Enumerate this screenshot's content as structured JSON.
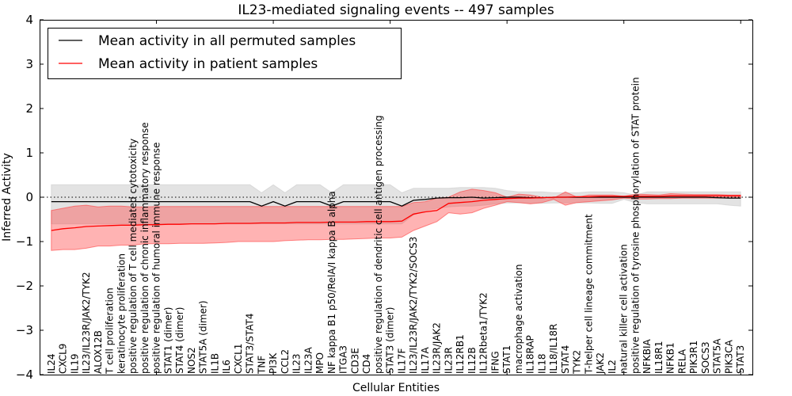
{
  "chart_data": {
    "type": "line",
    "title": "IL23-mediated signaling events -- 497 samples",
    "xlabel": "Cellular Entities",
    "ylabel": "Inferred Activity",
    "ylim": [
      -4,
      4
    ],
    "xlim": [
      0,
      61
    ],
    "yticks": [
      4,
      3,
      2,
      1,
      0,
      -1,
      -2,
      -3,
      -4
    ],
    "ytick_labels": [
      "4",
      "3",
      "2",
      "1",
      "0",
      "−1",
      "−2",
      "−3",
      "−4"
    ],
    "grid": false,
    "reference_line": 0,
    "legend": {
      "placement": "top-left",
      "entries": [
        {
          "label": "Mean activity in all permuted samples",
          "color": "#000000"
        },
        {
          "label": "Mean activity in patient samples",
          "color": "#ff0000"
        }
      ]
    },
    "categories": [
      "IL24",
      "CXCL9",
      "IL19",
      "IL23/IL23R/JAK2/TYK2",
      "ALOX12B",
      "T cell proliferation",
      "keratinocyte proliferation",
      "positive regulation of T cell mediated cytotoxicity",
      "positive regulation of chronic inflammatory response",
      "positive regulation of humoral immune response",
      "STAT1 (dimer)",
      "STAT4 (dimer)",
      "NOS2",
      "STAT5A (dimer)",
      "IL1B",
      "IL6",
      "CXCL1",
      "STAT3/STAT4",
      "TNF",
      "PI3K",
      "CCL2",
      "IL23",
      "IL23A",
      "MPO",
      "NF kappa B1 p50/RelA/I kappa B alpha",
      "ITGA3",
      "CD3E",
      "CD4",
      "positive regulation of dendritic cell antigen processing",
      "STAT3 (dimer)",
      "IL17F",
      "IL23/IL23R/JAK2/TYK2/SOCS3",
      "IL17A",
      "IL23R/JAK2",
      "IL23R",
      "IL12RB1",
      "IL12B",
      "IL12Rbeta1/TYK2",
      "IFNG",
      "STAT1",
      "macrophage activation",
      "IL18RAP",
      "IL18",
      "IL18/IL18R",
      "STAT4",
      "TYK2",
      "T-helper cell lineage commitment",
      "JAK2",
      "IL2",
      "natural killer cell activation",
      "positive regulation of tyrosine phosphorylation of STAT protein",
      "NFKBIA",
      "IL18R1",
      "NFKB1",
      "RELA",
      "PIK3R1",
      "SOCS3",
      "STAT5A",
      "PIK3CA",
      "STAT3"
    ],
    "series": [
      {
        "name": "Mean activity in all permuted samples",
        "color": "#000000",
        "values": [
          -0.1,
          -0.1,
          -0.1,
          -0.1,
          -0.1,
          -0.1,
          -0.1,
          -0.1,
          -0.1,
          -0.1,
          -0.1,
          -0.1,
          -0.1,
          -0.1,
          -0.1,
          -0.1,
          -0.1,
          -0.1,
          -0.2,
          -0.1,
          -0.2,
          -0.1,
          -0.1,
          -0.1,
          -0.2,
          -0.1,
          -0.1,
          -0.1,
          -0.1,
          -0.1,
          -0.2,
          -0.07,
          -0.05,
          -0.02,
          -0.01,
          -0.01,
          0.0,
          -0.02,
          -0.01,
          0.0,
          0.0,
          -0.01,
          -0.01,
          0.0,
          0.0,
          0.0,
          0.0,
          0.0,
          0.0,
          0.0,
          0.0,
          0.0,
          0.0,
          0.0,
          0.0,
          0.0,
          0.0,
          -0.01,
          -0.02,
          -0.02
        ],
        "band_upper": [
          0.28,
          0.28,
          0.28,
          0.28,
          0.28,
          0.28,
          0.28,
          0.28,
          0.28,
          0.28,
          0.28,
          0.28,
          0.28,
          0.28,
          0.28,
          0.28,
          0.28,
          0.28,
          0.1,
          0.28,
          0.1,
          0.28,
          0.28,
          0.28,
          0.1,
          0.28,
          0.28,
          0.28,
          0.28,
          0.28,
          0.1,
          0.2,
          0.2,
          0.2,
          0.2,
          0.22,
          0.22,
          0.22,
          0.2,
          0.15,
          0.12,
          0.12,
          0.12,
          0.1,
          0.1,
          0.1,
          0.12,
          0.12,
          0.12,
          0.1,
          0.05,
          0.12,
          0.12,
          0.12,
          0.12,
          0.12,
          0.12,
          0.12,
          0.12,
          0.12
        ],
        "band_lower": [
          -0.6,
          -0.6,
          -0.6,
          -0.6,
          -0.6,
          -0.6,
          -0.6,
          -0.6,
          -0.6,
          -0.6,
          -0.6,
          -0.6,
          -0.6,
          -0.6,
          -0.6,
          -0.6,
          -0.6,
          -0.6,
          -0.6,
          -0.6,
          -0.6,
          -0.6,
          -0.6,
          -0.6,
          -0.6,
          -0.6,
          -0.6,
          -0.6,
          -0.6,
          -0.6,
          -0.6,
          -0.4,
          -0.3,
          -0.25,
          -0.22,
          -0.2,
          -0.2,
          -0.18,
          -0.15,
          -0.13,
          -0.13,
          -0.14,
          -0.14,
          -0.13,
          -0.13,
          -0.13,
          -0.13,
          -0.14,
          -0.14,
          -0.05,
          -0.12,
          -0.15,
          -0.15,
          -0.15,
          -0.15,
          -0.15,
          -0.15,
          -0.15,
          -0.18,
          -0.2
        ]
      },
      {
        "name": "Mean activity in patient samples",
        "color": "#ff0000",
        "values": [
          -0.75,
          -0.71,
          -0.69,
          -0.66,
          -0.65,
          -0.64,
          -0.63,
          -0.63,
          -0.62,
          -0.62,
          -0.61,
          -0.61,
          -0.6,
          -0.6,
          -0.6,
          -0.59,
          -0.59,
          -0.59,
          -0.58,
          -0.58,
          -0.58,
          -0.57,
          -0.57,
          -0.57,
          -0.56,
          -0.56,
          -0.56,
          -0.55,
          -0.55,
          -0.55,
          -0.54,
          -0.38,
          -0.33,
          -0.3,
          -0.14,
          -0.12,
          -0.1,
          -0.07,
          -0.05,
          -0.03,
          -0.02,
          -0.02,
          -0.01,
          0.0,
          0.0,
          0.01,
          0.01,
          0.02,
          0.02,
          0.02,
          0.02,
          0.02,
          0.02,
          0.03,
          0.03,
          0.03,
          0.03,
          0.03,
          0.03,
          0.03
        ],
        "band_upper": [
          -0.3,
          -0.25,
          -0.2,
          -0.18,
          -0.22,
          -0.2,
          -0.2,
          -0.22,
          -0.22,
          -0.21,
          -0.21,
          -0.21,
          -0.21,
          -0.21,
          -0.21,
          -0.21,
          -0.21,
          -0.21,
          -0.21,
          -0.21,
          -0.21,
          -0.21,
          -0.21,
          -0.21,
          -0.21,
          -0.21,
          -0.21,
          -0.21,
          -0.21,
          -0.21,
          -0.21,
          -0.12,
          -0.1,
          -0.02,
          0.0,
          0.12,
          0.18,
          0.15,
          0.1,
          0.0,
          0.07,
          0.05,
          0.0,
          -0.02,
          0.12,
          0.0,
          0.05,
          0.05,
          0.05,
          0.02,
          0.07,
          0.06,
          0.05,
          0.08,
          0.07,
          0.06,
          0.06,
          0.06,
          0.05,
          0.05
        ],
        "band_lower": [
          -1.2,
          -1.18,
          -1.18,
          -1.15,
          -1.1,
          -1.1,
          -1.08,
          -1.08,
          -1.05,
          -1.05,
          -1.05,
          -1.04,
          -1.04,
          -1.04,
          -1.03,
          -1.02,
          -1.0,
          -1.0,
          -1.0,
          -1.0,
          -0.98,
          -0.97,
          -0.96,
          -0.96,
          -0.95,
          -0.95,
          -0.94,
          -0.93,
          -0.92,
          -0.92,
          -0.9,
          -0.75,
          -0.65,
          -0.55,
          -0.35,
          -0.38,
          -0.35,
          -0.25,
          -0.18,
          -0.1,
          -0.12,
          -0.15,
          -0.12,
          -0.05,
          -0.18,
          -0.12,
          -0.1,
          -0.08,
          -0.06,
          -0.02,
          -0.04,
          -0.04,
          -0.03,
          -0.03,
          -0.02,
          -0.02,
          -0.02,
          -0.02,
          -0.02,
          -0.02
        ]
      }
    ]
  }
}
